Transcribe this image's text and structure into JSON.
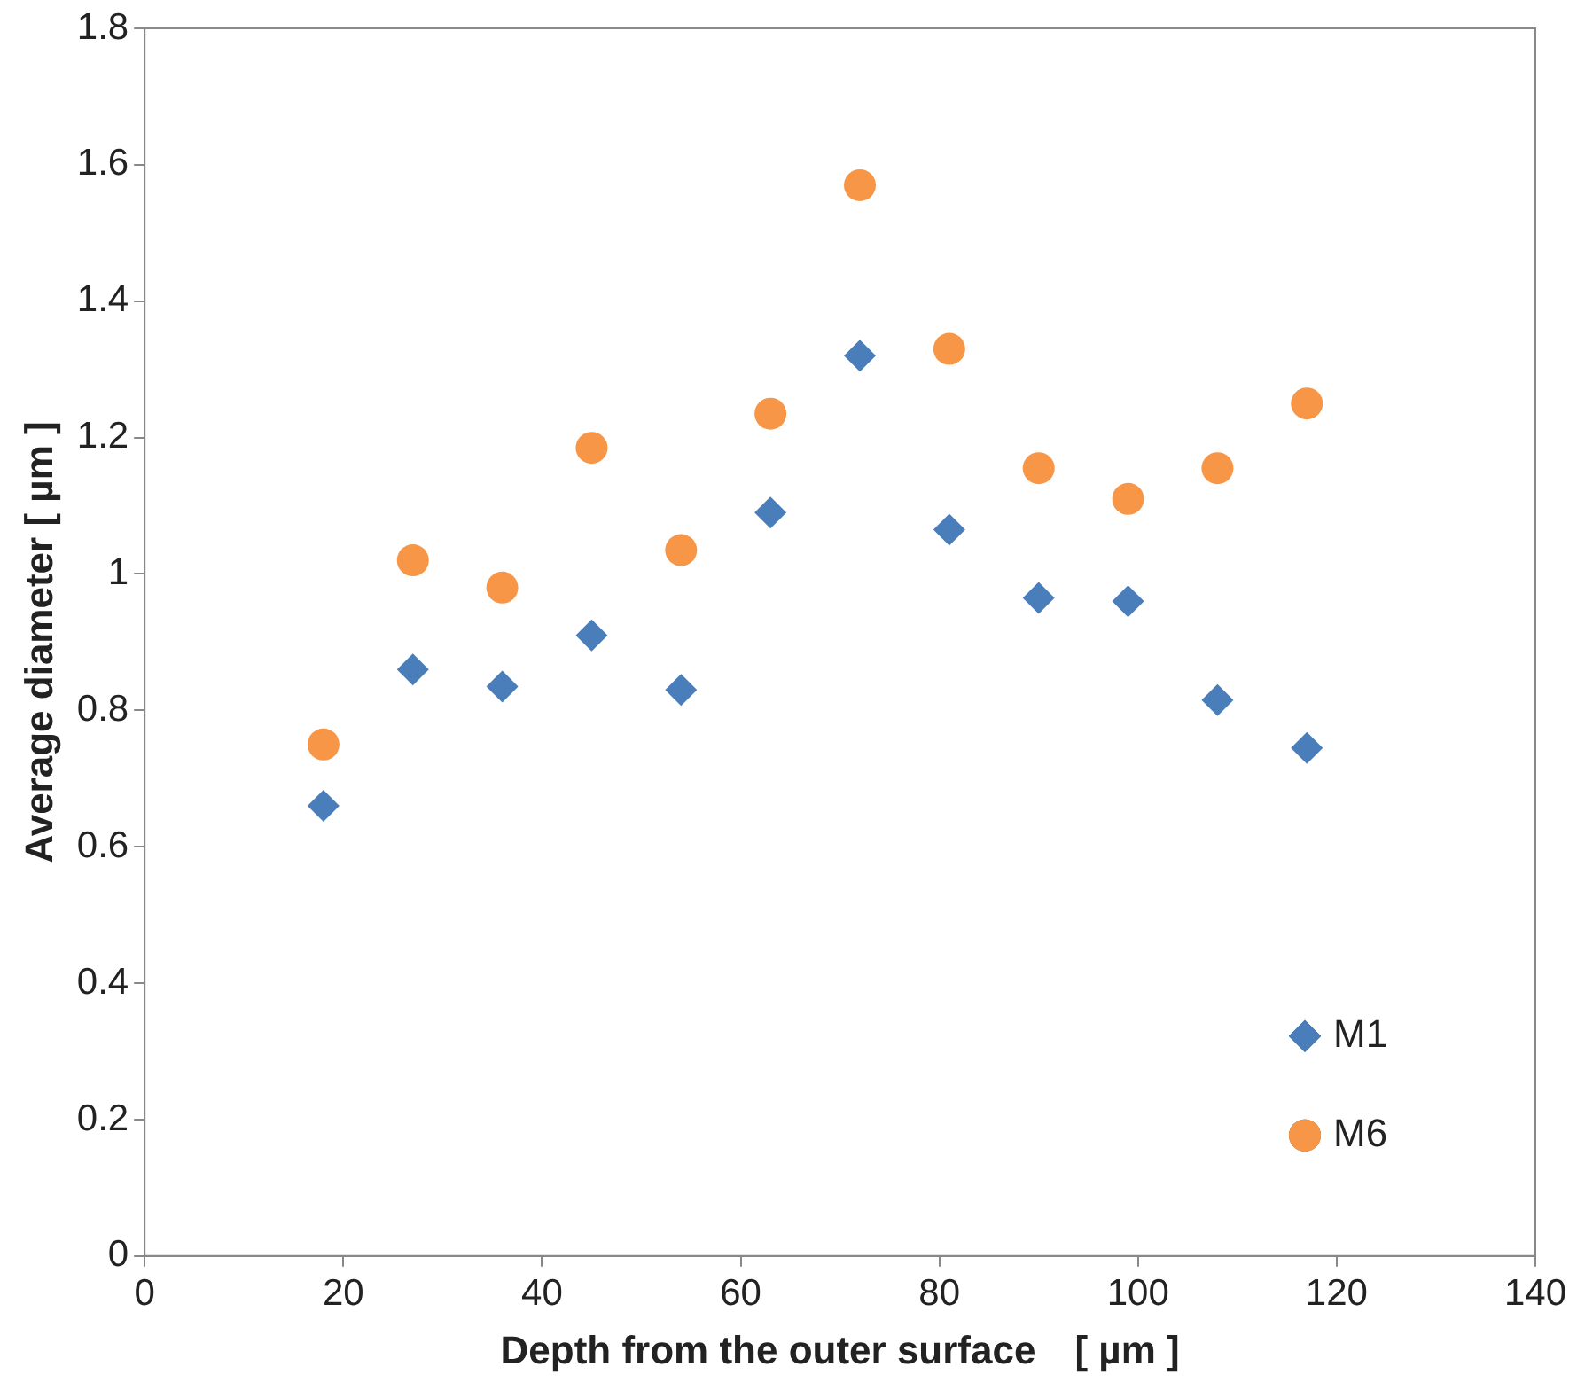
{
  "chart_data": {
    "type": "scatter",
    "xlabel": "Depth from the outer surface　[ µm ]",
    "ylabel": "Average diameter [ µm ]",
    "x": [
      18,
      27,
      36,
      45,
      54,
      63,
      72,
      81,
      90,
      99,
      108,
      117
    ],
    "series": [
      {
        "name": "M1",
        "color": "#4a7ebb",
        "marker": "diamond",
        "values": [
          0.66,
          0.86,
          0.835,
          0.91,
          0.83,
          1.09,
          1.32,
          1.065,
          0.965,
          0.96,
          0.815,
          0.745
        ]
      },
      {
        "name": "M6",
        "color": "#f79646",
        "marker": "circle",
        "values": [
          0.75,
          1.02,
          0.98,
          1.185,
          1.035,
          1.235,
          1.57,
          1.33,
          1.155,
          1.11,
          1.155,
          1.25
        ]
      }
    ],
    "xlim": [
      0,
      140
    ],
    "xticks": [
      0,
      20,
      40,
      60,
      80,
      100,
      120,
      140
    ],
    "ylim": [
      0,
      1.8
    ],
    "yticks": [
      0,
      0.2,
      0.4,
      0.6,
      0.8,
      1,
      1.2,
      1.4,
      1.6,
      1.8
    ],
    "grid": false,
    "legend": "bottom right"
  }
}
